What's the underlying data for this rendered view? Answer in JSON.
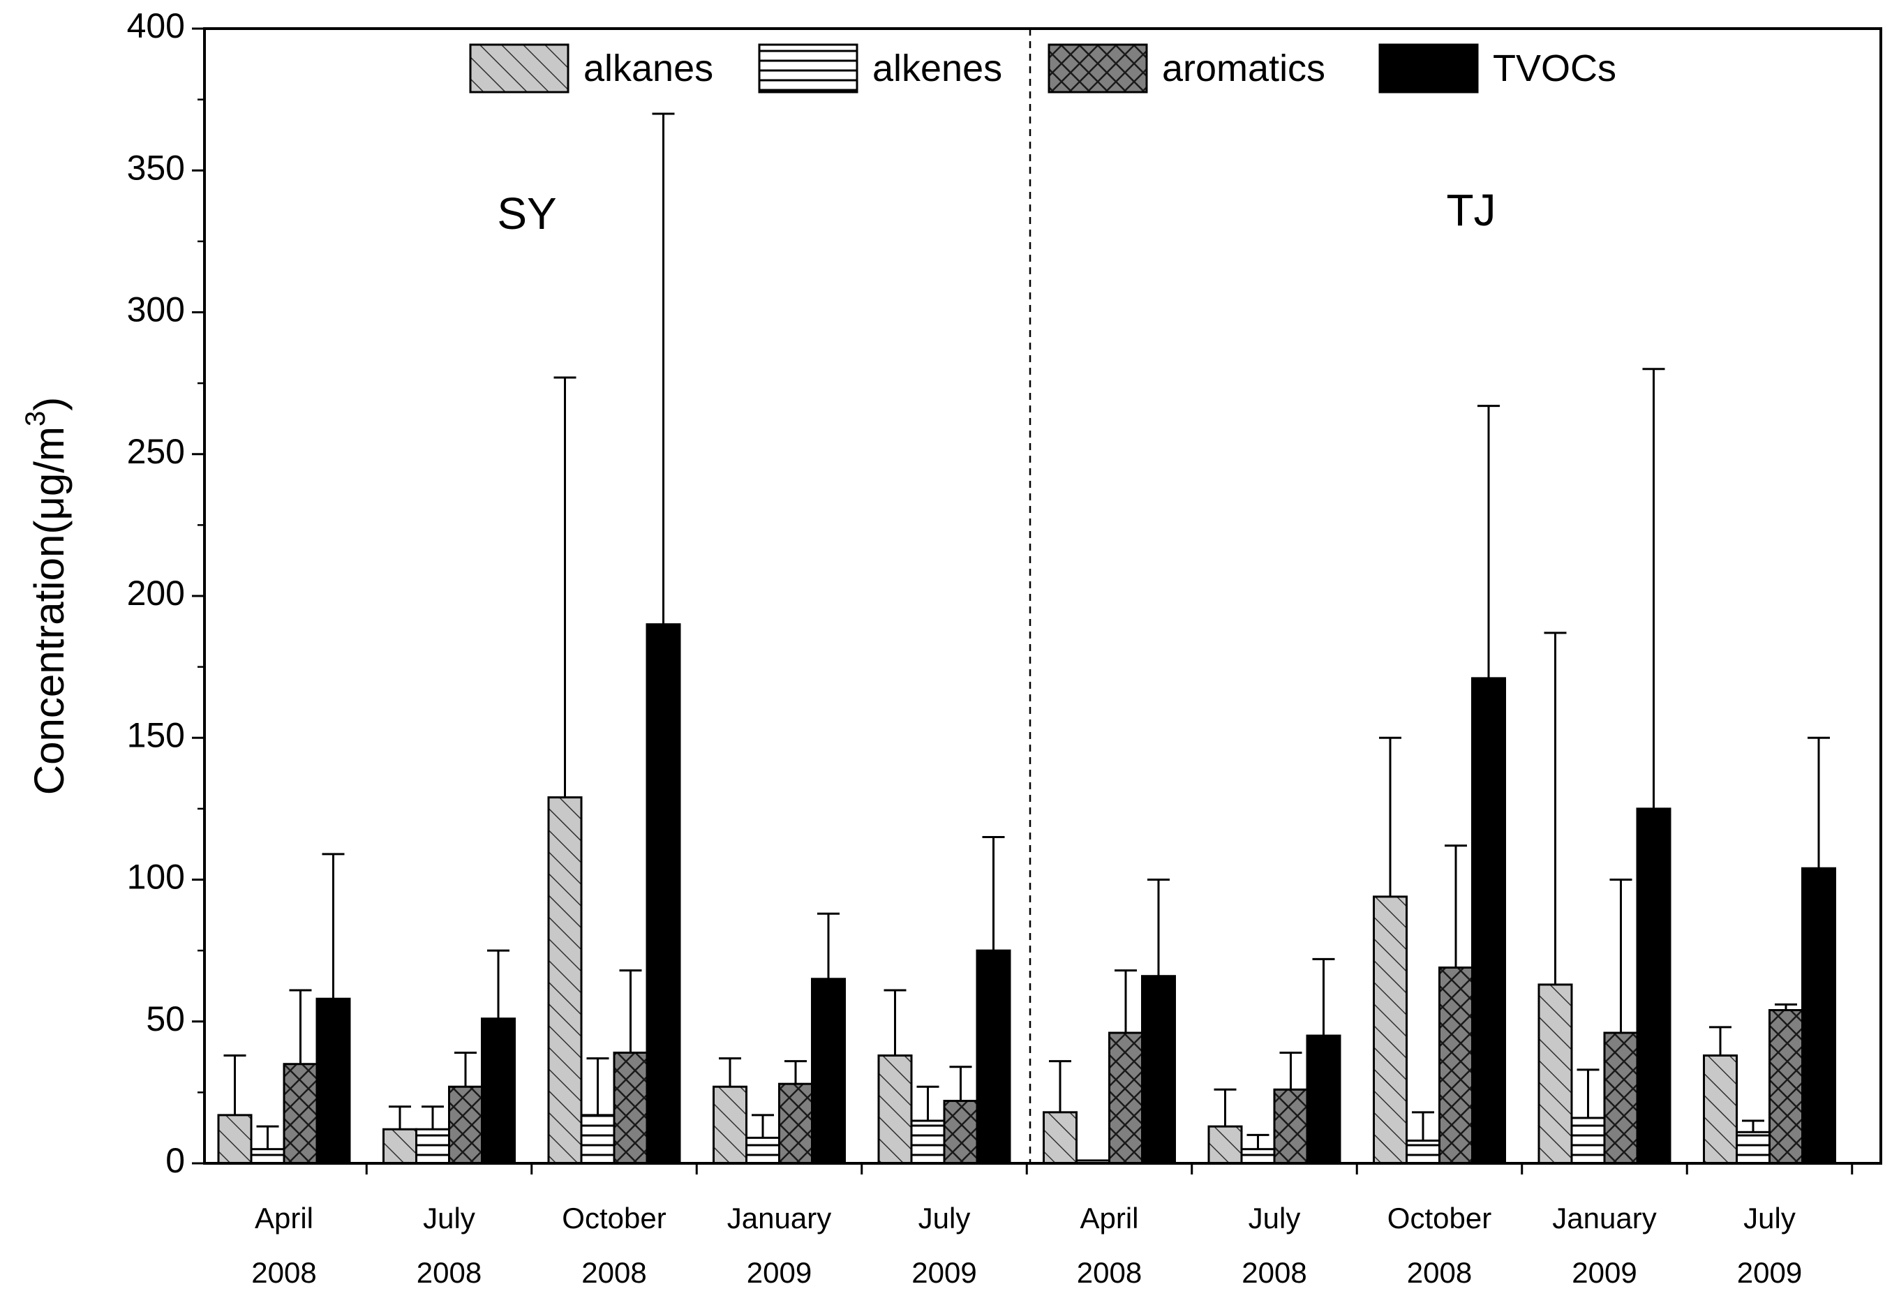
{
  "chart_data": {
    "type": "bar",
    "title": "",
    "xlabel": "",
    "ylabel": "Concentration(μg/m",
    "ylabel_superscript": "3",
    "ylabel_close": ")",
    "ylim": [
      0,
      400
    ],
    "yticks": [
      0,
      50,
      100,
      150,
      200,
      250,
      300,
      350,
      400
    ],
    "grid": false,
    "legend_position": "top",
    "groups": [
      {
        "label": "SY",
        "categories": [
          0,
          1,
          2,
          3,
          4
        ]
      },
      {
        "label": "TJ",
        "categories": [
          5,
          6,
          7,
          8,
          9
        ]
      }
    ],
    "categories": [
      [
        "April",
        "2008"
      ],
      [
        "July",
        "2008"
      ],
      [
        "October",
        "2008"
      ],
      [
        "January",
        "2009"
      ],
      [
        "July",
        "2009"
      ],
      [
        "April",
        "2008"
      ],
      [
        "July",
        "2008"
      ],
      [
        "October",
        "2008"
      ],
      [
        "January",
        "2009"
      ],
      [
        "July",
        "2009"
      ]
    ],
    "series": [
      {
        "name": "alkanes",
        "pattern": "diagonal",
        "color": "#c8c8c8",
        "values": [
          17,
          12,
          129,
          27,
          38,
          18,
          13,
          94,
          63,
          38
        ],
        "errors": [
          21,
          8,
          148,
          10,
          23,
          18,
          13,
          56,
          124,
          10
        ]
      },
      {
        "name": "alkenes",
        "pattern": "horizontal",
        "color": "#ffffff",
        "values": [
          5,
          12,
          17,
          9,
          15,
          1,
          5,
          8,
          16,
          11
        ],
        "errors": [
          8,
          8,
          20,
          8,
          12,
          0,
          5,
          10,
          17,
          4
        ]
      },
      {
        "name": "aromatics",
        "pattern": "crosshatch",
        "color": "#808080",
        "values": [
          35,
          27,
          39,
          28,
          22,
          46,
          26,
          69,
          46,
          54
        ],
        "errors": [
          26,
          12,
          29,
          8,
          12,
          22,
          13,
          43,
          54,
          2
        ]
      },
      {
        "name": "TVOCs",
        "pattern": "solid",
        "color": "#000000",
        "values": [
          58,
          51,
          190,
          65,
          75,
          66,
          45,
          171,
          125,
          104
        ],
        "errors": [
          51,
          24,
          180,
          23,
          40,
          34,
          27,
          96,
          155,
          46
        ]
      }
    ]
  }
}
